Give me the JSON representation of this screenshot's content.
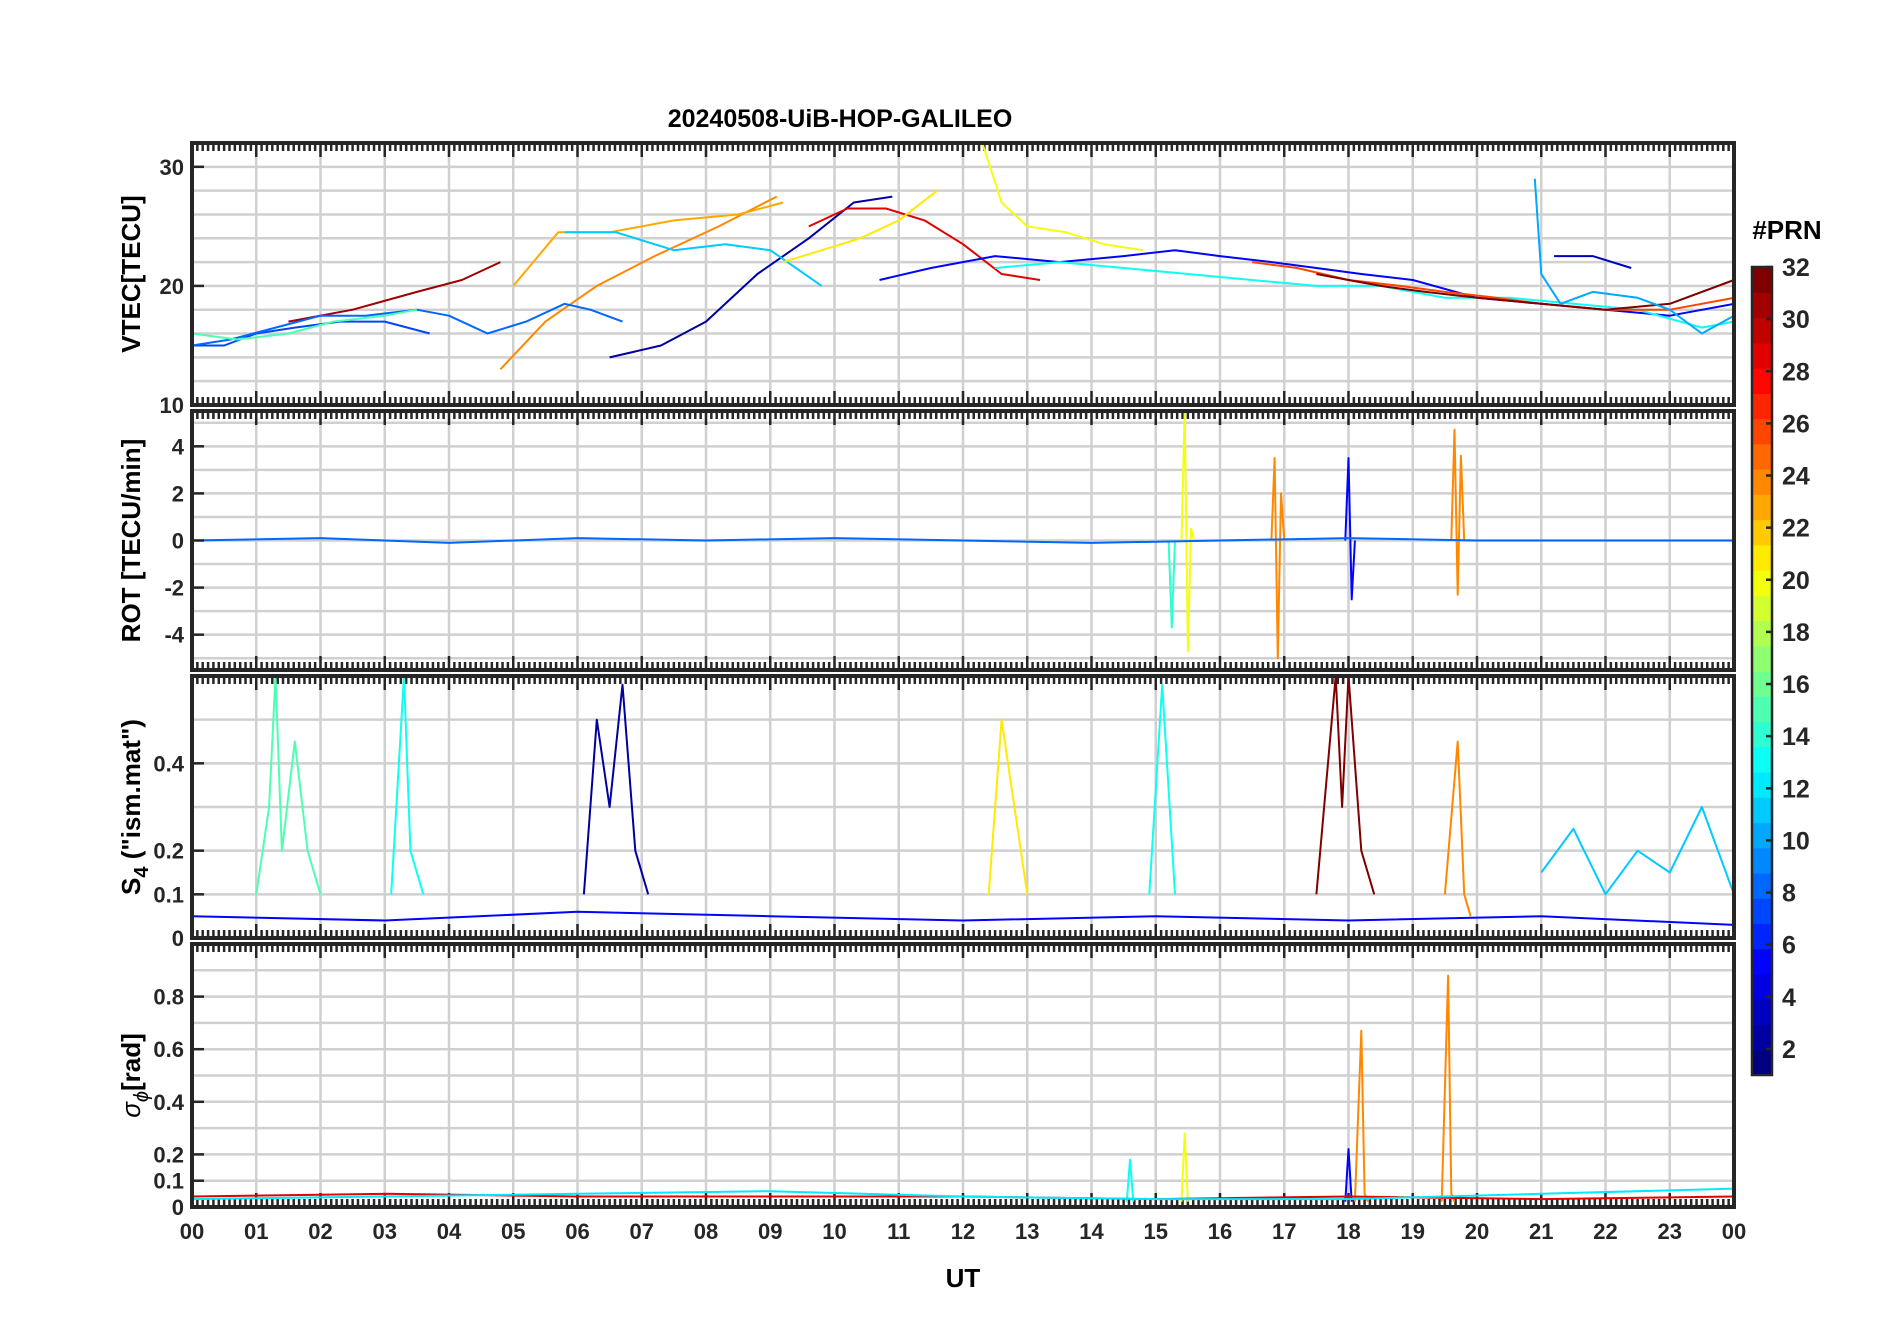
{
  "title": "20240508-UiB-HOP-GALILEO",
  "xlabel": "UT",
  "colorbar": {
    "title": "#PRN",
    "range": [
      1,
      32
    ],
    "colormap": "jet",
    "ticks": [
      "2",
      "4",
      "6",
      "8",
      "10",
      "12",
      "14",
      "16",
      "18",
      "20",
      "22",
      "24",
      "26",
      "28",
      "30",
      "32"
    ]
  },
  "chart_data": [
    {
      "type": "line",
      "name": "vtec",
      "ylabel": "VTEC[TECU]",
      "ylim": [
        10,
        32
      ],
      "yticks": [
        "10",
        "20",
        "30"
      ],
      "xlim": [
        0,
        24
      ],
      "xticks": [
        "00",
        "01",
        "02",
        "03",
        "04",
        "05",
        "06",
        "07",
        "08",
        "09",
        "10",
        "11",
        "12",
        "13",
        "14",
        "15",
        "16",
        "17",
        "18",
        "19",
        "20",
        "21",
        "22",
        "23",
        "00"
      ],
      "grid": true,
      "series": [
        {
          "prn": 31,
          "x": [
            1.5,
            2.5,
            3.5,
            4.2,
            4.8
          ],
          "y": [
            17,
            18,
            19.5,
            20.5,
            22
          ]
        },
        {
          "prn": 24,
          "x": [
            4.8,
            5.5,
            6.3,
            7.2,
            8.2,
            9.1
          ],
          "y": [
            13,
            17,
            20,
            22.5,
            25,
            27.5
          ]
        },
        {
          "prn": 23,
          "x": [
            5,
            5.7,
            6.5,
            7.5,
            8.5,
            9.2
          ],
          "y": [
            20,
            24.5,
            24.5,
            25.5,
            26,
            27
          ]
        },
        {
          "prn": 2,
          "x": [
            6.5,
            7.3,
            8,
            8.8,
            9.6,
            10.3,
            10.9
          ],
          "y": [
            14,
            15,
            17,
            21,
            24,
            27,
            27.5
          ]
        },
        {
          "prn": 29,
          "x": [
            9.6,
            10.2,
            10.8,
            11.4,
            12,
            12.6,
            13.2
          ],
          "y": [
            25,
            26.5,
            26.5,
            25.5,
            23.5,
            21,
            20.5
          ]
        },
        {
          "prn": 20,
          "x": [
            12.3,
            12.6,
            13,
            13.6,
            14.2,
            14.8
          ],
          "y": [
            32,
            27,
            25,
            24.5,
            23.5,
            23
          ]
        },
        {
          "prn": 11,
          "x": [
            5.8,
            6.6,
            7.5,
            8.3,
            9,
            9.8
          ],
          "y": [
            24.5,
            24.5,
            23,
            23.5,
            23,
            20
          ]
        },
        {
          "prn": 5,
          "x": [
            10.7,
            11.5,
            12.5,
            13.5,
            14.5,
            15.3,
            16,
            16.8,
            17.5,
            18.2,
            19,
            20,
            21,
            22,
            23,
            24
          ],
          "y": [
            20.5,
            21.5,
            22.5,
            22,
            22.5,
            23,
            22.5,
            22,
            21.5,
            21,
            20.5,
            19,
            18.5,
            18,
            17.5,
            18.5
          ]
        },
        {
          "prn": 13,
          "x": [
            12.5,
            13.5,
            14.5,
            15.5,
            16.5,
            17.5,
            18.5,
            19.5,
            20.5,
            21.5,
            22.5,
            23.5,
            24
          ],
          "y": [
            21.5,
            22,
            21.5,
            21,
            20.5,
            20,
            20,
            19,
            19,
            18.5,
            18,
            16.5,
            17
          ]
        },
        {
          "prn": 26,
          "x": [
            16.5,
            17.2,
            18,
            18.8,
            19.5,
            20.3,
            21,
            22,
            23,
            24
          ],
          "y": [
            22,
            21.5,
            20.5,
            20,
            19.5,
            19,
            18.5,
            18,
            18,
            19
          ]
        },
        {
          "prn": 32,
          "x": [
            17.5,
            18,
            18.5,
            19.2,
            20,
            21,
            22,
            23,
            24
          ],
          "y": [
            21,
            20.5,
            20,
            19.5,
            19,
            18.5,
            18,
            18.5,
            20.5
          ]
        },
        {
          "prn": 7,
          "x": [
            0,
            0.5,
            1,
            1.6,
            2.3,
            3,
            3.7
          ],
          "y": [
            15,
            15,
            16,
            16.5,
            17,
            17,
            16
          ]
        },
        {
          "prn": 8,
          "x": [
            0,
            0.6,
            1.3,
            2,
            2.7,
            3.5,
            4,
            4.6,
            5.2,
            5.8,
            6.2,
            6.7
          ],
          "y": [
            15,
            15.5,
            16.5,
            17.5,
            17.5,
            18,
            17.5,
            16,
            17,
            18.5,
            18,
            17
          ]
        },
        {
          "prn": 15,
          "x": [
            0,
            0.7,
            1.5,
            2.2,
            3,
            3.5
          ],
          "y": [
            16,
            15.5,
            16,
            17,
            17.5,
            18
          ]
        },
        {
          "prn": 21,
          "x": [
            9.2,
            9.8,
            10.4,
            11,
            11.6
          ],
          "y": [
            22,
            23,
            24,
            25.5,
            28
          ]
        },
        {
          "prn": 10,
          "x": [
            20.9,
            21,
            21.3,
            21.8,
            22.5,
            23,
            23.5,
            24
          ],
          "y": [
            29,
            21,
            18.5,
            19.5,
            19,
            18,
            16,
            17.5
          ]
        },
        {
          "prn": 3,
          "x": [
            21.2,
            21.8,
            22.4
          ],
          "y": [
            22.5,
            22.5,
            21.5
          ]
        }
      ]
    },
    {
      "type": "line",
      "name": "rot",
      "ylabel": "ROT [TECU/min]",
      "ylim": [
        -5.5,
        5.5
      ],
      "yticks": [
        "-4",
        "-2",
        "0",
        "2",
        "4"
      ],
      "xlim": [
        0,
        24
      ],
      "grid": true,
      "series": [
        {
          "prn": 20,
          "x": [
            15.4,
            15.45,
            15.5,
            15.55,
            15.6
          ],
          "y": [
            0,
            5.5,
            -4.7,
            0.5,
            0
          ]
        },
        {
          "prn": 24,
          "x": [
            16.8,
            16.85,
            16.9,
            16.95,
            17
          ],
          "y": [
            0,
            3.5,
            -5,
            2,
            0
          ]
        },
        {
          "prn": 24,
          "x": [
            19.6,
            19.65,
            19.7,
            19.75,
            19.8
          ],
          "y": [
            0,
            4.7,
            -2.3,
            3.6,
            0
          ]
        },
        {
          "prn": 5,
          "x": [
            17.95,
            18,
            18.05,
            18.1
          ],
          "y": [
            0,
            3.5,
            -2.5,
            0
          ]
        },
        {
          "prn": 14,
          "x": [
            15.2,
            15.25,
            15.3
          ],
          "y": [
            0,
            -3.7,
            0
          ]
        },
        {
          "prn": 8,
          "x": [
            0,
            2,
            4,
            6,
            8,
            10,
            12,
            14,
            16,
            18,
            20,
            22,
            24
          ],
          "y": [
            0,
            0.1,
            -0.1,
            0.1,
            0,
            0.1,
            0,
            -0.1,
            0,
            0.1,
            0,
            0,
            0
          ]
        }
      ]
    },
    {
      "type": "line",
      "name": "s4",
      "ylabel": "S",
      "ylabel_sub": "4",
      "ylabel_rest": " (\"ism.mat\")",
      "ylim": [
        0,
        0.6
      ],
      "yticks": [
        "0",
        "0.1",
        "0.2",
        "0.4"
      ],
      "xlim": [
        0,
        24
      ],
      "grid": true,
      "series": [
        {
          "prn": 15,
          "x": [
            1,
            1.2,
            1.3,
            1.4,
            1.6,
            1.8,
            2
          ],
          "y": [
            0.1,
            0.3,
            0.6,
            0.2,
            0.45,
            0.2,
            0.1
          ]
        },
        {
          "prn": 13,
          "x": [
            3.1,
            3.3,
            3.4,
            3.6
          ],
          "y": [
            0.1,
            0.6,
            0.2,
            0.1
          ]
        },
        {
          "prn": 2,
          "x": [
            6.1,
            6.3,
            6.5,
            6.7,
            6.9,
            7.1
          ],
          "y": [
            0.1,
            0.5,
            0.3,
            0.58,
            0.2,
            0.1
          ]
        },
        {
          "prn": 21,
          "x": [
            12.4,
            12.6,
            12.8,
            13
          ],
          "y": [
            0.1,
            0.5,
            0.3,
            0.1
          ]
        },
        {
          "prn": 13,
          "x": [
            14.9,
            15.1,
            15.3
          ],
          "y": [
            0.1,
            0.58,
            0.1
          ]
        },
        {
          "prn": 32,
          "x": [
            17.5,
            17.8,
            17.9,
            18,
            18.2,
            18.4
          ],
          "y": [
            0.1,
            0.6,
            0.3,
            0.6,
            0.2,
            0.1
          ]
        },
        {
          "prn": 24,
          "x": [
            19.5,
            19.7,
            19.8,
            19.9
          ],
          "y": [
            0.1,
            0.45,
            0.1,
            0.05
          ]
        },
        {
          "prn": 11,
          "x": [
            21,
            21.5,
            22,
            22.5,
            23,
            23.5,
            24
          ],
          "y": [
            0.15,
            0.25,
            0.1,
            0.2,
            0.15,
            0.3,
            0.1
          ]
        },
        {
          "prn": 5,
          "x": [
            0,
            3,
            6,
            9,
            12,
            15,
            18,
            21,
            24
          ],
          "y": [
            0.05,
            0.04,
            0.06,
            0.05,
            0.04,
            0.05,
            0.04,
            0.05,
            0.03
          ]
        }
      ]
    },
    {
      "type": "line",
      "name": "sigma-phi",
      "ylabel": "σ",
      "ylabel_sub": "ϕ",
      "ylabel_rest": "[rad]",
      "ylim": [
        0,
        1
      ],
      "yticks": [
        "0",
        "0.1",
        "0.2",
        "0.4",
        "0.6",
        "0.8"
      ],
      "xlim": [
        0,
        24
      ],
      "grid": true,
      "series": [
        {
          "prn": 24,
          "x": [
            18.1,
            18.2,
            18.25,
            18.3
          ],
          "y": [
            0.02,
            0.67,
            0.05,
            0.02
          ]
        },
        {
          "prn": 24,
          "x": [
            19.45,
            19.55,
            19.6,
            19.65
          ],
          "y": [
            0.02,
            0.88,
            0.05,
            0.02
          ]
        },
        {
          "prn": 20,
          "x": [
            15.4,
            15.45,
            15.5
          ],
          "y": [
            0.02,
            0.28,
            0.02
          ]
        },
        {
          "prn": 13,
          "x": [
            14.55,
            14.6,
            14.65
          ],
          "y": [
            0.02,
            0.18,
            0.02
          ]
        },
        {
          "prn": 5,
          "x": [
            17.95,
            18,
            18.05
          ],
          "y": [
            0.02,
            0.22,
            0.02
          ]
        },
        {
          "prn": 29,
          "x": [
            0,
            3,
            6,
            9,
            12,
            15,
            18,
            21,
            24
          ],
          "y": [
            0.04,
            0.05,
            0.04,
            0.04,
            0.04,
            0.03,
            0.04,
            0.03,
            0.04
          ]
        },
        {
          "prn": 12,
          "x": [
            0,
            3,
            6,
            9,
            12,
            15,
            18,
            21,
            24
          ],
          "y": [
            0.03,
            0.04,
            0.05,
            0.06,
            0.04,
            0.03,
            0.03,
            0.05,
            0.07
          ]
        }
      ]
    }
  ]
}
